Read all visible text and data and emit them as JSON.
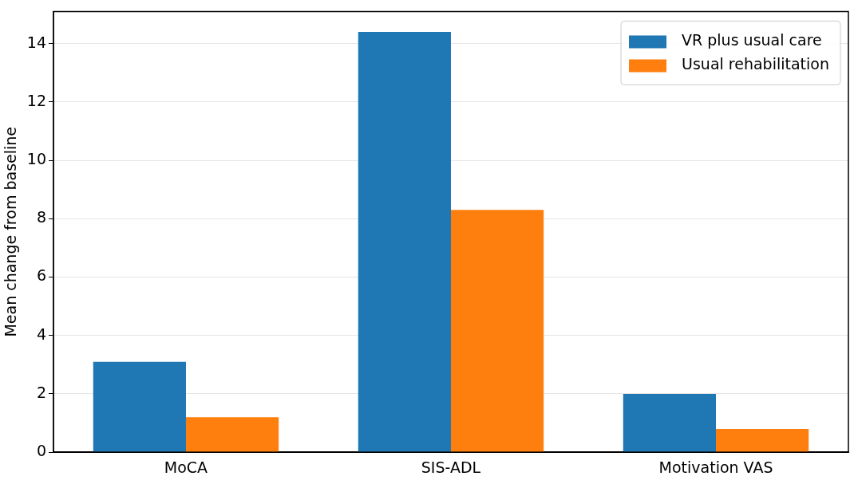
{
  "chart_data": {
    "type": "bar",
    "ylabel": "Mean change from baseline",
    "categories": [
      "MoCA",
      "SIS-ADL",
      "Motivation VAS"
    ],
    "series": [
      {
        "name": "VR plus usual care",
        "color": "#1f77b4",
        "values": [
          3.1,
          14.4,
          2.0
        ]
      },
      {
        "name": "Usual rehabilitation",
        "color": "#ff7f0e",
        "values": [
          1.2,
          8.3,
          0.8
        ]
      }
    ],
    "ylim": [
      0,
      15.1
    ],
    "yticks": [
      0,
      2,
      4,
      6,
      8,
      10,
      12,
      14
    ],
    "grid": "y",
    "legend": "top right"
  }
}
